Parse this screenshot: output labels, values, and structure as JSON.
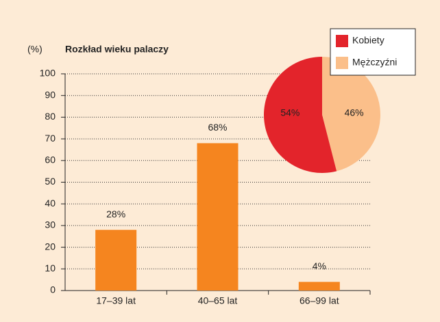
{
  "chart_data": [
    {
      "type": "bar",
      "ylabel": "(%)",
      "title": "Rozkład wieku palaczy",
      "categories": [
        "17–39 lat",
        "40–65 lat",
        "66–99 lat"
      ],
      "values": [
        28,
        68,
        4
      ],
      "value_labels": [
        "28%",
        "68%",
        "4%"
      ],
      "color": "#f5851f",
      "ylim": [
        0,
        100
      ],
      "yticks": [
        0,
        10,
        20,
        30,
        40,
        50,
        60,
        70,
        80,
        90,
        100
      ],
      "grid": true
    },
    {
      "type": "pie",
      "categories": [
        "Kobiety",
        "Mężczyźni"
      ],
      "values": [
        54,
        46
      ],
      "value_labels": [
        "54%",
        "46%"
      ],
      "colors": [
        "#e3242b",
        "#fbbf8a"
      ],
      "legend": "upper right"
    }
  ]
}
